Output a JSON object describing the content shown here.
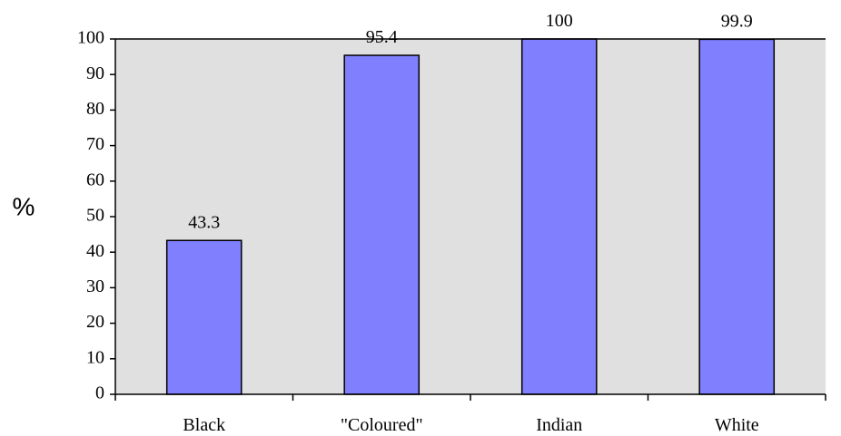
{
  "chart_data": {
    "type": "bar",
    "title": "",
    "xlabel": "",
    "ylabel": "%",
    "categories": [
      "Black",
      "\"Coloured\"",
      "Indian",
      "White"
    ],
    "values": [
      43.3,
      95.4,
      100,
      99.9
    ],
    "value_labels": [
      "43.3",
      "95.4",
      "100",
      "99.9"
    ],
    "ylim": [
      0,
      100
    ],
    "yticks": [
      0,
      10,
      20,
      30,
      40,
      50,
      60,
      70,
      80,
      90,
      100
    ],
    "grid": false,
    "legend": "none",
    "colors": {
      "bar_fill": "#8080ff",
      "bar_stroke": "#000000",
      "plot_background": "#e0e0e0",
      "axis": "#000000"
    }
  }
}
